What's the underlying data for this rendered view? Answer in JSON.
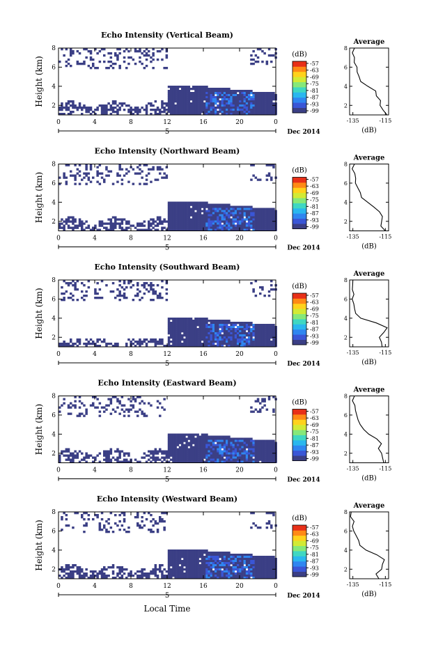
{
  "figure": {
    "x_axis_label": "Local Time",
    "date_label": "Dec 2014",
    "day_label": "5",
    "y_axis_label": "Height (km)",
    "colorbar_unit": "(dB)",
    "colorbar_ticks": [
      "-57",
      "-63",
      "-69",
      "-75",
      "-81",
      "-87",
      "-93",
      "-99"
    ],
    "colorbar_colors": [
      "#3b3f85",
      "#3a56d6",
      "#2f86f0",
      "#2ab7ee",
      "#3fd7c2",
      "#86e879",
      "#d2ea35",
      "#ffd21c",
      "#ff8a16",
      "#e83018"
    ],
    "heatmap_fill": "#3b3f85",
    "strong_echo_colors": [
      "#3a56d6",
      "#2f86f0"
    ]
  },
  "chart_data": [
    {
      "type": "heatmap",
      "title": "Echo Intensity (Vertical Beam)",
      "ylabel": "Height (km)",
      "x_ticks": [
        "0",
        "4",
        "8",
        "12",
        "16",
        "20",
        "0"
      ],
      "y_ticks": [
        "2",
        "4",
        "6",
        "8"
      ],
      "xlim": [
        0,
        24
      ],
      "ylim": [
        1,
        8
      ],
      "colorbar": {
        "label": "(dB)",
        "range": [
          -99,
          -57
        ]
      },
      "avg_profile": {
        "title": "Average",
        "xlabel": "(dB)",
        "x_ticks": [
          "-135",
          "-115"
        ],
        "y_ticks": [
          "2",
          "4",
          "6",
          "8"
        ],
        "xlim": [
          -137,
          -113
        ],
        "ylim": [
          1,
          8
        ],
        "heights": [
          1.0,
          1.5,
          2.0,
          2.5,
          3.0,
          3.5,
          4.0,
          4.5,
          5.0,
          5.5,
          6.0,
          6.5,
          7.0,
          7.5,
          8.0
        ],
        "values": [
          -114,
          -116,
          -117.5,
          -118,
          -120,
          -121,
          -126,
          -130,
          -131,
          -132,
          -133,
          -133.5,
          -134,
          -135,
          -134
        ]
      }
    },
    {
      "type": "heatmap",
      "title": "Echo Intensity (Northward Beam)",
      "ylabel": "Height (km)",
      "x_ticks": [
        "0",
        "4",
        "8",
        "12",
        "16",
        "20",
        "0"
      ],
      "y_ticks": [
        "2",
        "4",
        "6",
        "8"
      ],
      "xlim": [
        0,
        24
      ],
      "ylim": [
        1,
        8
      ],
      "colorbar": {
        "label": "(dB)",
        "range": [
          -99,
          -57
        ]
      },
      "avg_profile": {
        "title": "Average",
        "xlabel": "(dB)",
        "x_ticks": [
          "-135",
          "-115"
        ],
        "y_ticks": [
          "2",
          "4",
          "6",
          "8"
        ],
        "xlim": [
          -137,
          -113
        ],
        "ylim": [
          1,
          8
        ],
        "heights": [
          1.0,
          1.5,
          2.0,
          2.5,
          3.0,
          3.5,
          4.0,
          4.5,
          5.0,
          5.5,
          6.0,
          6.5,
          7.0,
          7.5,
          8.0
        ],
        "values": [
          -115,
          -117,
          -118,
          -117,
          -118,
          -122,
          -126,
          -129,
          -131,
          -132,
          -133,
          -134,
          -134.5,
          -135,
          -134
        ]
      }
    },
    {
      "type": "heatmap",
      "title": "Echo Intensity (Southward Beam)",
      "ylabel": "Height (km)",
      "x_ticks": [
        "0",
        "4",
        "8",
        "12",
        "16",
        "20",
        "0"
      ],
      "y_ticks": [
        "2",
        "4",
        "6",
        "8"
      ],
      "xlim": [
        0,
        24
      ],
      "ylim": [
        1,
        8
      ],
      "colorbar": {
        "label": "(dB)",
        "range": [
          -99,
          -57
        ]
      },
      "avg_profile": {
        "title": "Average",
        "xlabel": "(dB)",
        "x_ticks": [
          "-135",
          "-115"
        ],
        "y_ticks": [
          "2",
          "4",
          "6",
          "8"
        ],
        "xlim": [
          -137,
          -113
        ],
        "ylim": [
          1,
          8
        ],
        "heights": [
          1.0,
          1.5,
          2.0,
          2.5,
          3.0,
          3.5,
          4.0,
          4.5,
          5.0,
          5.5,
          6.0,
          6.5,
          7.0,
          7.5,
          8.0
        ],
        "values": [
          -117,
          -117,
          -119,
          -116,
          -114,
          -120,
          -130,
          -133,
          -134,
          -134,
          -135,
          -135,
          -135,
          -135.5,
          -135
        ]
      }
    },
    {
      "type": "heatmap",
      "title": "Echo Intensity (Eastward Beam)",
      "ylabel": "Height (km)",
      "x_ticks": [
        "0",
        "4",
        "8",
        "12",
        "16",
        "20",
        "0"
      ],
      "y_ticks": [
        "2",
        "4",
        "6",
        "8"
      ],
      "xlim": [
        0,
        24
      ],
      "ylim": [
        1,
        8
      ],
      "colorbar": {
        "label": "(dB)",
        "range": [
          -99,
          -57
        ]
      },
      "avg_profile": {
        "title": "Average",
        "xlabel": "(dB)",
        "x_ticks": [
          "-135",
          "-115"
        ],
        "y_ticks": [
          "2",
          "4",
          "6",
          "8"
        ],
        "xlim": [
          -137,
          -113
        ],
        "ylim": [
          1,
          8
        ],
        "heights": [
          1.0,
          1.5,
          2.0,
          2.5,
          3.0,
          3.5,
          4.0,
          4.5,
          5.0,
          5.5,
          6.0,
          6.5,
          7.0,
          7.5,
          8.0
        ],
        "values": [
          -116,
          -117,
          -118,
          -119,
          -118,
          -121,
          -126,
          -128,
          -131,
          -132,
          -133,
          -134,
          -134.5,
          -135,
          -134
        ]
      }
    },
    {
      "type": "heatmap",
      "title": "Echo Intensity (Westward Beam)",
      "ylabel": "Height (km)",
      "x_ticks": [
        "0",
        "4",
        "8",
        "12",
        "16",
        "20",
        "0"
      ],
      "y_ticks": [
        "2",
        "4",
        "6",
        "8"
      ],
      "xlim": [
        0,
        24
      ],
      "ylim": [
        1,
        8
      ],
      "colorbar": {
        "label": "(dB)",
        "range": [
          -99,
          -57
        ]
      },
      "avg_profile": {
        "title": "Average",
        "xlabel": "(dB)",
        "x_ticks": [
          "-135",
          "-115"
        ],
        "y_ticks": [
          "2",
          "4",
          "6",
          "8"
        ],
        "xlim": [
          -137,
          -113
        ],
        "ylim": [
          1,
          8
        ],
        "heights": [
          1.0,
          1.5,
          2.0,
          2.5,
          3.0,
          3.5,
          4.0,
          4.5,
          5.0,
          5.5,
          6.0,
          6.5,
          7.0,
          7.5,
          8.0
        ],
        "values": [
          -119,
          -120,
          -118,
          -117,
          -115,
          -120,
          -127,
          -130,
          -132,
          -133,
          -134,
          -136,
          -135,
          -136,
          -136
        ]
      }
    }
  ]
}
